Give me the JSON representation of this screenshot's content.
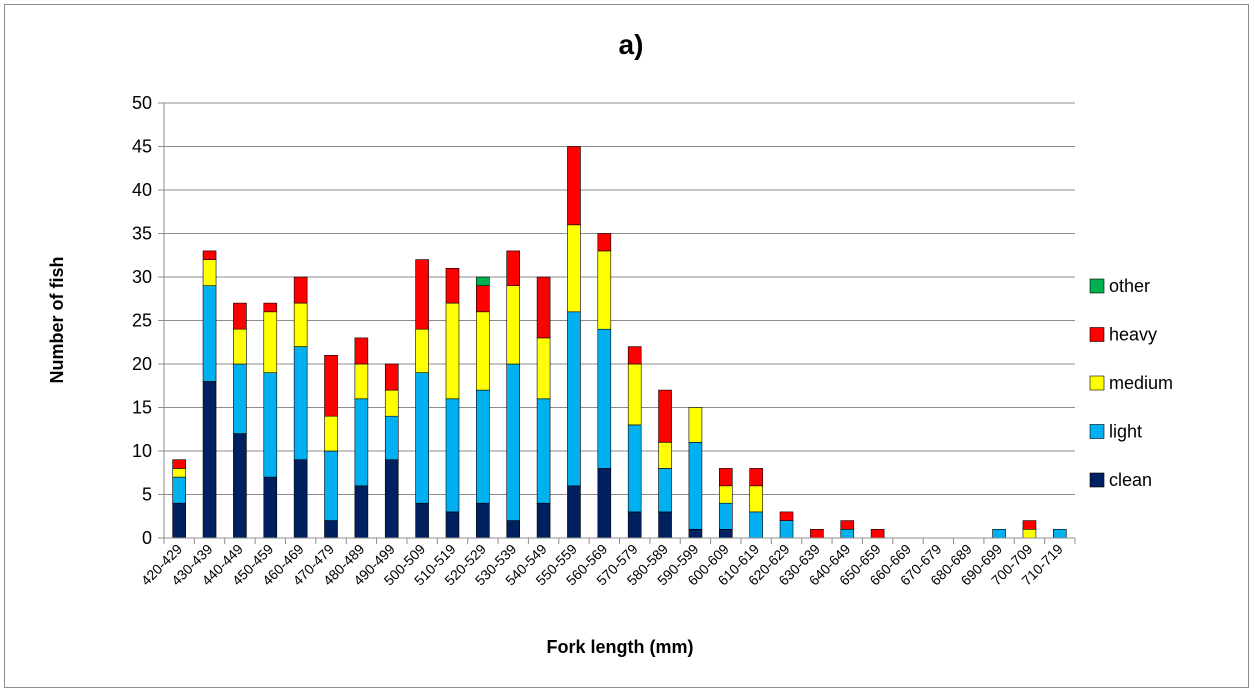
{
  "chart_data": {
    "type": "bar",
    "stacked": true,
    "title": "a)",
    "xlabel": "Fork length (mm)",
    "ylabel": "Number of fish",
    "ylim": [
      0,
      50
    ],
    "yticks": [
      0,
      5,
      10,
      15,
      20,
      25,
      30,
      35,
      40,
      45,
      50
    ],
    "grid": true,
    "legend_position": "right",
    "categories": [
      "420-429",
      "430-439",
      "440-449",
      "450-459",
      "460-469",
      "470-479",
      "480-489",
      "490-499",
      "500-509",
      "510-519",
      "520-529",
      "530-539",
      "540-549",
      "550-559",
      "560-569",
      "570-579",
      "580-589",
      "590-599",
      "600-609",
      "610-619",
      "620-629",
      "630-639",
      "640-649",
      "650-659",
      "660-669",
      "670-679",
      "680-689",
      "690-699",
      "700-709",
      "710-719"
    ],
    "series": [
      {
        "name": "clean",
        "color": "#002060",
        "values": [
          4,
          18,
          12,
          7,
          9,
          2,
          6,
          9,
          4,
          3,
          4,
          2,
          4,
          6,
          8,
          3,
          3,
          1,
          1,
          0,
          0,
          0,
          0,
          0,
          0,
          0,
          0,
          0,
          0,
          0
        ]
      },
      {
        "name": "light",
        "color": "#00B0F0",
        "values": [
          3,
          11,
          8,
          12,
          13,
          8,
          10,
          5,
          15,
          13,
          13,
          18,
          12,
          20,
          16,
          10,
          5,
          10,
          3,
          3,
          2,
          0,
          1,
          0,
          0,
          0,
          0,
          1,
          0,
          1
        ]
      },
      {
        "name": "medium",
        "color": "#FFFF00",
        "values": [
          1,
          3,
          4,
          7,
          5,
          4,
          4,
          3,
          5,
          11,
          9,
          9,
          7,
          10,
          9,
          7,
          3,
          4,
          2,
          3,
          0,
          0,
          0,
          0,
          0,
          0,
          0,
          0,
          1,
          0
        ]
      },
      {
        "name": "heavy",
        "color": "#FF0000",
        "values": [
          1,
          1,
          3,
          1,
          3,
          7,
          3,
          3,
          8,
          4,
          3,
          4,
          7,
          9,
          2,
          2,
          6,
          0,
          2,
          2,
          1,
          1,
          1,
          1,
          0,
          0,
          0,
          0,
          1,
          0
        ]
      },
      {
        "name": "other",
        "color": "#00B050",
        "values": [
          0,
          0,
          0,
          0,
          0,
          0,
          0,
          0,
          0,
          0,
          1,
          0,
          0,
          0,
          0,
          0,
          0,
          0,
          0,
          0,
          0,
          0,
          0,
          0,
          0,
          0,
          0,
          0,
          0,
          0
        ]
      }
    ]
  }
}
